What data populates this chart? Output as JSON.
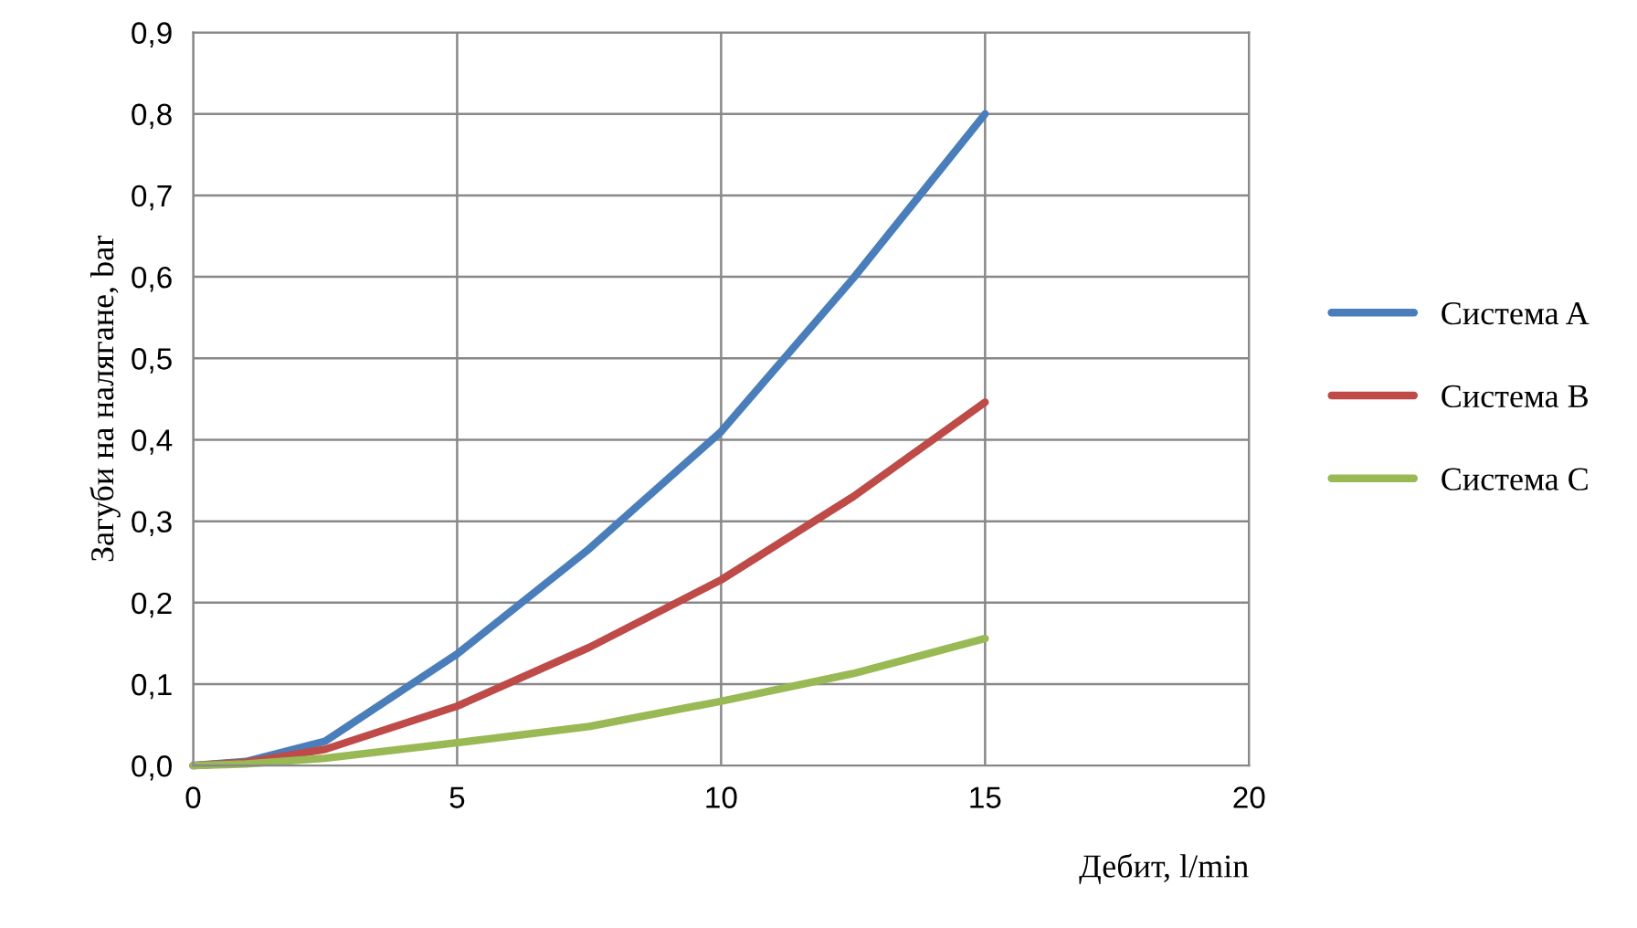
{
  "chart_data": {
    "type": "line",
    "xlabel": "Дебит, l/min",
    "ylabel": "Загуби на налягане, bar",
    "xlim": [
      0,
      20
    ],
    "xticks": [
      0,
      5,
      10,
      15,
      20
    ],
    "ylim": [
      0,
      0.9
    ],
    "yticks": [
      {
        "value": 0,
        "label": "0,0"
      },
      {
        "value": 0.1,
        "label": "0,1"
      },
      {
        "value": 0.2,
        "label": "0,2"
      },
      {
        "value": 0.3,
        "label": "0,3"
      },
      {
        "value": 0.4,
        "label": "0,4"
      },
      {
        "value": 0.5,
        "label": "0,5"
      },
      {
        "value": 0.6,
        "label": "0,6"
      },
      {
        "value": 0.7,
        "label": "0,7"
      },
      {
        "value": 0.8,
        "label": "0,8"
      },
      {
        "value": 0.9,
        "label": "0,9"
      }
    ],
    "grid": true,
    "legend": "right",
    "marker": "none",
    "line_style": "solid",
    "x": [
      0,
      1,
      2.5,
      5,
      7.5,
      10,
      12.5,
      15
    ],
    "series": [
      {
        "name": "Система A",
        "color": "#4a7ebb",
        "values": [
          0,
          0.005,
          0.03,
          0.137,
          0.266,
          0.41,
          0.598,
          0.8
        ]
      },
      {
        "name": "Система B",
        "color": "#be4b48",
        "values": [
          0,
          0.004,
          0.02,
          0.073,
          0.145,
          0.228,
          0.33,
          0.446
        ]
      },
      {
        "name": "Система C",
        "color": "#98b954",
        "values": [
          0,
          0.002,
          0.009,
          0.028,
          0.048,
          0.079,
          0.113,
          0.156
        ]
      }
    ]
  }
}
